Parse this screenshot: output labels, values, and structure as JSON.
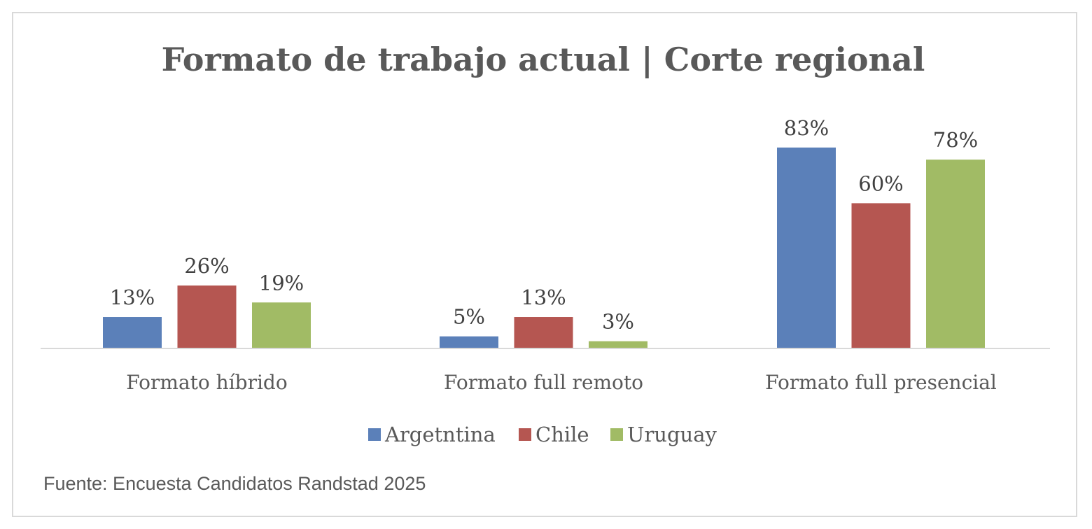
{
  "chart_data": {
    "type": "bar",
    "title": "Formato de trabajo actual | Corte regional",
    "categories": [
      "Formato híbrido",
      "Formato full remoto",
      "Formato full presencial"
    ],
    "series": [
      {
        "name": "Argetntina",
        "values": [
          13,
          5,
          83
        ],
        "labels": [
          "13%",
          "5%",
          "83%"
        ],
        "color": "#5b80b9"
      },
      {
        "name": "Chile",
        "values": [
          26,
          13,
          60
        ],
        "labels": [
          "26%",
          "13%",
          "60%"
        ],
        "color": "#b55651"
      },
      {
        "name": "Uruguay",
        "values": [
          19,
          3,
          78
        ],
        "labels": [
          "19%",
          "3%",
          "78%"
        ],
        "color": "#a1bb65"
      }
    ],
    "unit": "%",
    "ylim": [
      0,
      100
    ],
    "grid": false,
    "legend_position": "bottom",
    "source": "Fuente: Encuesta Candidatos Randstad 2025"
  }
}
